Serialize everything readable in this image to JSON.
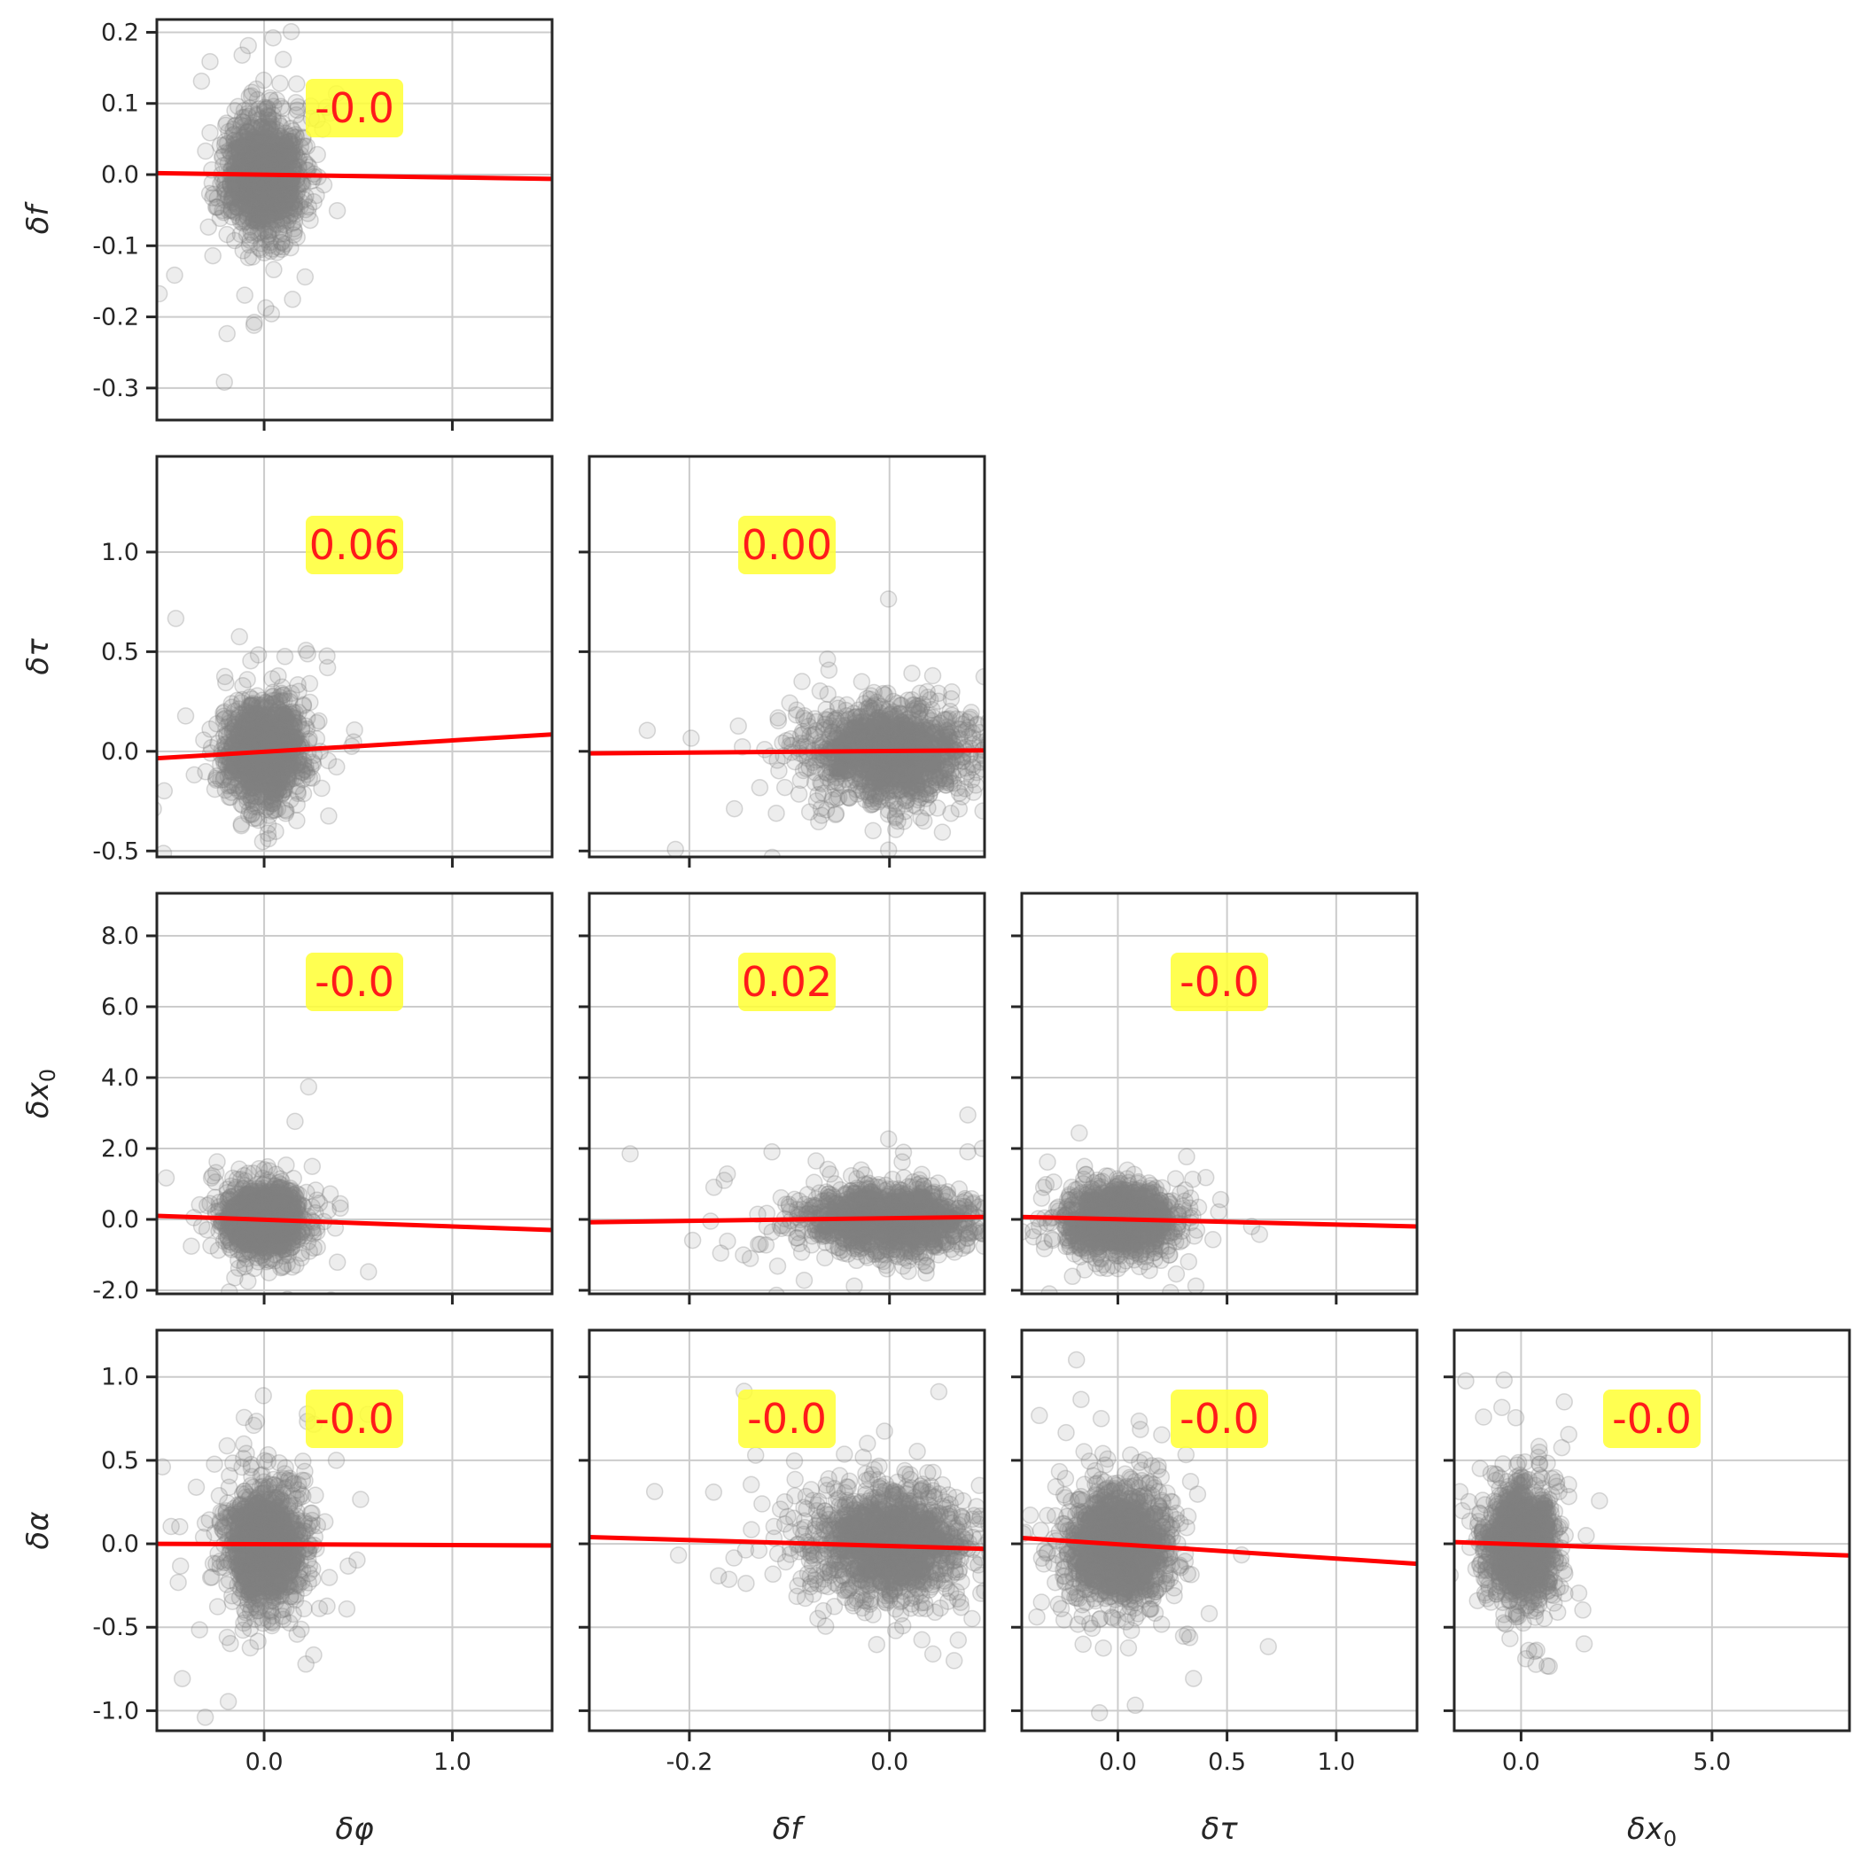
{
  "chart_data": {
    "type": "scatter",
    "layout": "corner-pairplot",
    "variables": [
      "δφ",
      "δf",
      "δτ",
      "δx₀",
      "δα"
    ],
    "axes_labels": {
      "δφ": {
        "main": "δ",
        "sym": "φ",
        "sub": ""
      },
      "δf": {
        "main": "δ",
        "sym": "f",
        "sub": ""
      },
      "δτ": {
        "main": "δ",
        "sym": "τ",
        "sub": ""
      },
      "δx₀": {
        "main": "δ",
        "sym": "x",
        "sub": "0"
      },
      "δα": {
        "main": "δ",
        "sym": "α",
        "sub": ""
      }
    },
    "ranges": {
      "δφ": [
        -0.57,
        1.53
      ],
      "δf": [
        -0.345,
        0.218
      ],
      "δτ": [
        -0.53,
        1.48
      ],
      "δx₀": [
        -2.1,
        9.2
      ],
      "δα": [
        -1.12,
        1.28
      ]
    },
    "x_ranges": {
      "δφ": [
        -0.57,
        1.53
      ],
      "δf": [
        -0.3,
        0.095
      ],
      "δτ": [
        -0.44,
        1.37
      ],
      "δx₀": [
        -1.75,
        8.6
      ]
    },
    "x_ticks": {
      "δφ": {
        "values": [
          0.0,
          1.0
        ],
        "labels": [
          "0.0",
          "1.0"
        ]
      },
      "δf": {
        "values": [
          -0.2,
          0.0
        ],
        "labels": [
          "-0.2",
          "0.0"
        ]
      },
      "δτ": {
        "values": [
          0.0,
          0.5,
          1.0
        ],
        "labels": [
          "0.0",
          "0.5",
          "1.0"
        ]
      },
      "δx₀": {
        "values": [
          0.0,
          5.0
        ],
        "labels": [
          "0.0",
          "5.0"
        ]
      }
    },
    "y_ticks": {
      "δf": {
        "values": [
          0.2,
          0.1,
          0.0,
          -0.1,
          -0.2,
          -0.3
        ],
        "labels": [
          "0.2",
          "0.1",
          "0.0",
          "-0.1",
          "-0.2",
          "-0.3"
        ]
      },
      "δτ": {
        "values": [
          1.0,
          0.5,
          0.0,
          -0.5
        ],
        "labels": [
          "1.0",
          "0.5",
          "0.0",
          "-0.5"
        ]
      },
      "δx₀": {
        "values": [
          8.0,
          6.0,
          4.0,
          2.0,
          0.0,
          -2.0
        ],
        "labels": [
          "8.0",
          "6.0",
          "4.0",
          "2.0",
          "0.0",
          "-2.0"
        ]
      },
      "δα": {
        "values": [
          1.0,
          0.5,
          0.0,
          -0.5,
          -1.0
        ],
        "labels": [
          "1.0",
          "0.5",
          "0.0",
          "-0.5",
          "-1.0"
        ]
      }
    },
    "spread": {
      "δφ": 0.1,
      "δf": 0.04,
      "δτ": 0.12,
      "δx₀": 0.45,
      "δα": 0.17
    },
    "panels": [
      {
        "row": 0,
        "col": 0,
        "x": "δφ",
        "y": "δf",
        "correlation": "-0.0",
        "fit": [
          [
            -0.57,
            0.002
          ],
          [
            1.53,
            -0.006
          ]
        ]
      },
      {
        "row": 1,
        "col": 0,
        "x": "δφ",
        "y": "δτ",
        "correlation": "0.06",
        "fit": [
          [
            -0.57,
            -0.035
          ],
          [
            1.53,
            0.085
          ]
        ]
      },
      {
        "row": 1,
        "col": 1,
        "x": "δf",
        "y": "δτ",
        "correlation": "0.00",
        "fit": [
          [
            -0.3,
            -0.01
          ],
          [
            0.095,
            0.005
          ]
        ]
      },
      {
        "row": 2,
        "col": 0,
        "x": "δφ",
        "y": "δx₀",
        "correlation": "-0.0",
        "fit": [
          [
            -0.57,
            0.1
          ],
          [
            1.53,
            -0.3
          ]
        ]
      },
      {
        "row": 2,
        "col": 1,
        "x": "δf",
        "y": "δx₀",
        "correlation": "0.02",
        "fit": [
          [
            -0.3,
            -0.08
          ],
          [
            0.095,
            0.07
          ]
        ]
      },
      {
        "row": 2,
        "col": 2,
        "x": "δτ",
        "y": "δx₀",
        "correlation": "-0.0",
        "fit": [
          [
            -0.44,
            0.07
          ],
          [
            1.37,
            -0.2
          ]
        ]
      },
      {
        "row": 3,
        "col": 0,
        "x": "δφ",
        "y": "δα",
        "correlation": "-0.0",
        "fit": [
          [
            -0.57,
            0.0
          ],
          [
            1.53,
            -0.01
          ]
        ]
      },
      {
        "row": 3,
        "col": 1,
        "x": "δf",
        "y": "δα",
        "correlation": "-0.0",
        "fit": [
          [
            -0.3,
            0.04
          ],
          [
            0.095,
            -0.03
          ]
        ]
      },
      {
        "row": 3,
        "col": 2,
        "x": "δτ",
        "y": "δα",
        "correlation": "-0.0",
        "fit": [
          [
            -0.44,
            0.035
          ],
          [
            1.37,
            -0.12
          ]
        ]
      },
      {
        "row": 3,
        "col": 3,
        "x": "δx₀",
        "y": "δα",
        "correlation": "-0.0",
        "fit": [
          [
            -1.75,
            0.01
          ],
          [
            8.6,
            -0.07
          ]
        ]
      }
    ],
    "colors": {
      "points": "#808080",
      "fit_line": "#ff0000",
      "label_box": "#ffff33",
      "label_text": "#ff1a1a",
      "grid": "#cccccc",
      "frame": "#262626"
    },
    "grid": true,
    "legend": "none"
  }
}
